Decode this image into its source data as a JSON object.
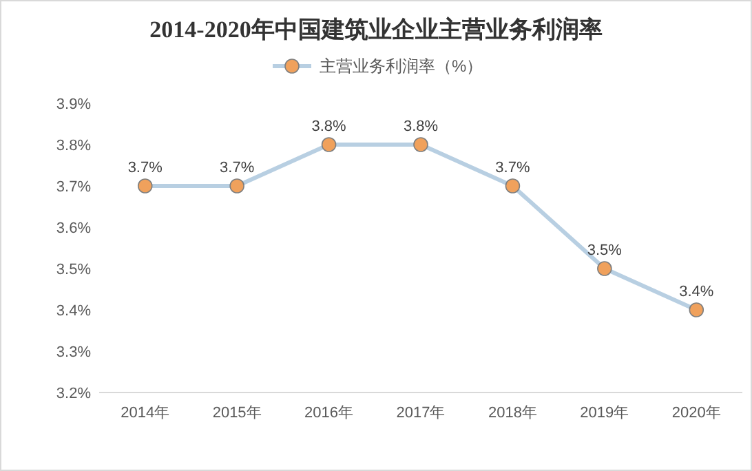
{
  "chart_data": {
    "type": "line",
    "title": "2014-2020年中国建筑业企业主营业务利润率",
    "categories": [
      "2014年",
      "2015年",
      "2016年",
      "2017年",
      "2018年",
      "2019年",
      "2020年"
    ],
    "series": [
      {
        "name": "主营业务利润率（%）",
        "color": "#b8cfe2",
        "values": [
          3.7,
          3.7,
          3.8,
          3.8,
          3.7,
          3.5,
          3.4
        ],
        "value_labels": [
          "3.7%",
          "3.7%",
          "3.8%",
          "3.8%",
          "3.7%",
          "3.5%",
          "3.4%"
        ]
      }
    ],
    "marker": "circle",
    "legend": "top",
    "grid": false,
    "ylim": [
      3.2,
      3.9
    ],
    "yticks": [
      {
        "value": 3.2,
        "label": "3.2%"
      },
      {
        "value": 3.3,
        "label": "3.3%"
      },
      {
        "value": 3.4,
        "label": "3.4%"
      },
      {
        "value": 3.5,
        "label": "3.5%"
      },
      {
        "value": 3.6,
        "label": "3.6%"
      },
      {
        "value": 3.7,
        "label": "3.7%"
      },
      {
        "value": 3.8,
        "label": "3.8%"
      },
      {
        "value": 3.9,
        "label": "3.9%"
      }
    ]
  }
}
